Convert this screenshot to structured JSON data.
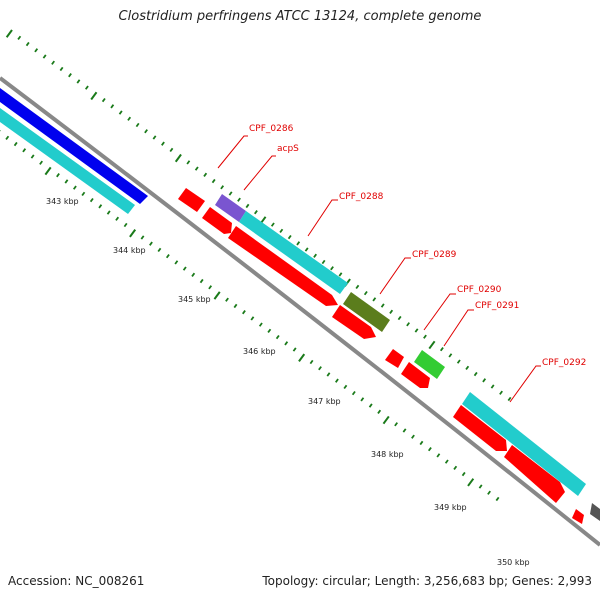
{
  "title": "Clostridium perfringens ATCC 13124, complete genome",
  "footer": {
    "accession": "Accession: NC_008261",
    "summary": "Topology: circular; Length: 3,256,683 bp; Genes: 2,993"
  },
  "scale_labels": [
    "343 kbp",
    "344 kbp",
    "345 kbp",
    "346 kbp",
    "347 kbp",
    "348 kbp",
    "349 kbp",
    "350 kbp"
  ],
  "gene_labels": [
    "CPF_0286",
    "acpS",
    "CPF_0288",
    "CPF_0289",
    "CPF_0290",
    "CPF_0291",
    "CPF_0292"
  ],
  "colors": {
    "red": "#ff0000",
    "cyan": "#22cccc",
    "blue": "#0000ee",
    "purple": "#7a55d0",
    "olive": "#5b7d1c",
    "green": "#33cc33",
    "dark_gray": "#555555",
    "backbone": "#888888",
    "tick_green": "#1a7a1a",
    "label_red": "#e00000"
  }
}
